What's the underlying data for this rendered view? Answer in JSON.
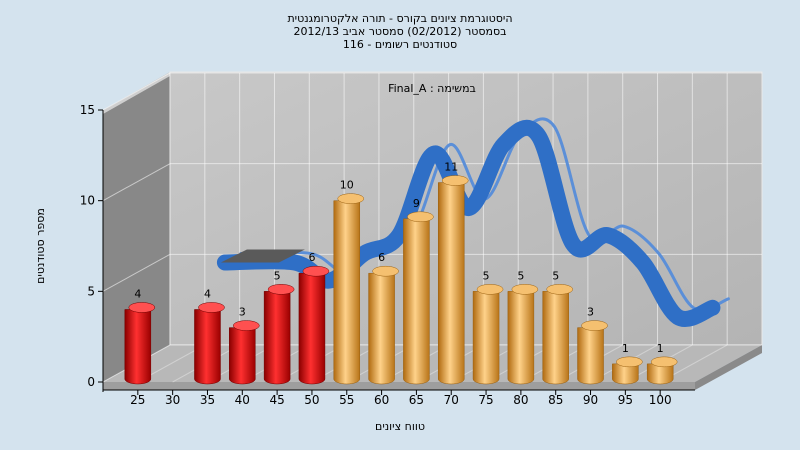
{
  "chart_data": {
    "type": "bar",
    "title_lines": [
      "היסטוגרמת ציונים בקורס - תורה אלקטרומגנטית",
      "בסמסטר  (02/2012)  סמסטר אביב 2012/13",
      "סטודנטים רשומים - 116"
    ],
    "series_label": "Final_A : במשימה",
    "xlabel": "טווח ציונים",
    "ylabel": "מספר סטודנטים",
    "ylim": [
      0,
      15
    ],
    "yticks": [
      0,
      5,
      10,
      15
    ],
    "xticks": [
      25,
      30,
      35,
      40,
      45,
      50,
      55,
      60,
      65,
      70,
      75,
      80,
      85,
      90,
      95,
      100
    ],
    "bars": [
      {
        "x": 25,
        "value": 4,
        "label": "4"
      },
      {
        "x": 35,
        "value": 4,
        "label": "4"
      },
      {
        "x": 40,
        "value": 3,
        "label": "3"
      },
      {
        "x": 45,
        "value": 5,
        "label": "5"
      },
      {
        "x": 50,
        "value": 6,
        "label": "6"
      },
      {
        "x": 55,
        "value": 10,
        "label": "10"
      },
      {
        "x": 60,
        "value": 6,
        "label": "6"
      },
      {
        "x": 65,
        "value": 9,
        "label": "9"
      },
      {
        "x": 70,
        "value": 11,
        "label": "11"
      },
      {
        "x": 75,
        "value": 5,
        "label": "5"
      },
      {
        "x": 80,
        "value": 5,
        "label": "5"
      },
      {
        "x": 85,
        "value": 5,
        "label": "5"
      },
      {
        "x": 90,
        "value": 3,
        "label": "3"
      },
      {
        "x": 95,
        "value": 1,
        "label": "1"
      },
      {
        "x": 100,
        "value": 1,
        "label": "1"
      }
    ],
    "fail_threshold": 55,
    "curve": [
      {
        "x": 30,
        "y": 5
      },
      {
        "x": 40,
        "y": 5
      },
      {
        "x": 45,
        "y": 4
      },
      {
        "x": 50,
        "y": 5.5
      },
      {
        "x": 55,
        "y": 6.5
      },
      {
        "x": 60,
        "y": 11
      },
      {
        "x": 65,
        "y": 8
      },
      {
        "x": 70,
        "y": 11.5
      },
      {
        "x": 75,
        "y": 12
      },
      {
        "x": 80,
        "y": 6
      },
      {
        "x": 85,
        "y": 6.5
      },
      {
        "x": 90,
        "y": 5
      },
      {
        "x": 95,
        "y": 2
      },
      {
        "x": 100,
        "y": 2.5
      }
    ],
    "colors": {
      "fail": "#e01010",
      "pass": "#e8a040",
      "curve": "#2f6fc6",
      "background": "#d4e3ee"
    },
    "grid": true,
    "legend": "none"
  }
}
